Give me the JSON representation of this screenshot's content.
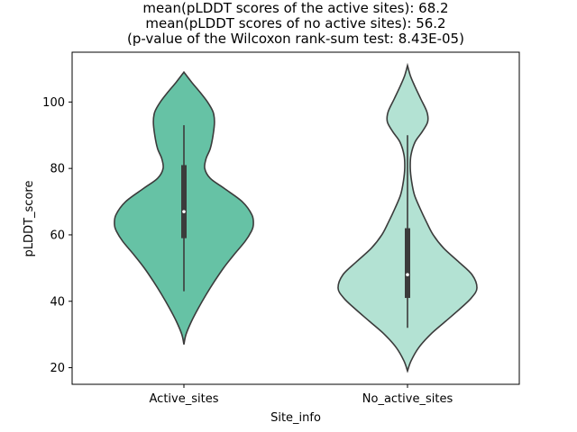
{
  "chart_data": {
    "type": "violin",
    "title_lines": [
      "mean(pLDDT scores of the active sites): 68.2",
      "mean(pLDDT scores of no active sites): 56.2",
      "(p-value of the Wilcoxon rank-sum test: 8.43E-05)"
    ],
    "xlabel": "Site_info",
    "ylabel": "pLDDT_score",
    "ylim": [
      15,
      115
    ],
    "yticks": [
      20,
      40,
      60,
      80,
      100
    ],
    "categories": [
      "Active_sites",
      "No_active_sites"
    ],
    "violins": [
      {
        "name": "Active_sites",
        "color": "#66c2a5",
        "range": [
          27,
          109
        ],
        "whisker": [
          43,
          93
        ],
        "q1": 59,
        "median": 67,
        "q3": 81,
        "density_profile": [
          [
            27,
            0.0
          ],
          [
            30,
            0.03
          ],
          [
            34,
            0.11
          ],
          [
            38,
            0.21
          ],
          [
            42,
            0.32
          ],
          [
            46,
            0.44
          ],
          [
            50,
            0.57
          ],
          [
            54,
            0.72
          ],
          [
            58,
            0.88
          ],
          [
            61,
            0.97
          ],
          [
            63,
            1.0
          ],
          [
            66,
            0.98
          ],
          [
            70,
            0.84
          ],
          [
            74,
            0.58
          ],
          [
            77,
            0.38
          ],
          [
            80,
            0.3
          ],
          [
            83,
            0.32
          ],
          [
            86,
            0.38
          ],
          [
            90,
            0.42
          ],
          [
            94,
            0.44
          ],
          [
            97,
            0.42
          ],
          [
            100,
            0.34
          ],
          [
            103,
            0.23
          ],
          [
            106,
            0.11
          ],
          [
            109,
            0.0
          ]
        ]
      },
      {
        "name": "No_active_sites",
        "color": "#b3e2d3",
        "range": [
          19,
          111
        ],
        "whisker": [
          32,
          90
        ],
        "q1": 41,
        "median": 48,
        "q3": 62,
        "density_profile": [
          [
            19,
            0.0
          ],
          [
            22,
            0.05
          ],
          [
            26,
            0.16
          ],
          [
            30,
            0.33
          ],
          [
            34,
            0.55
          ],
          [
            38,
            0.77
          ],
          [
            41,
            0.92
          ],
          [
            44,
            1.0
          ],
          [
            48,
            0.93
          ],
          [
            52,
            0.73
          ],
          [
            56,
            0.52
          ],
          [
            60,
            0.37
          ],
          [
            64,
            0.27
          ],
          [
            68,
            0.18
          ],
          [
            72,
            0.1
          ],
          [
            76,
            0.06
          ],
          [
            80,
            0.04
          ],
          [
            84,
            0.05
          ],
          [
            88,
            0.11
          ],
          [
            91,
            0.21
          ],
          [
            94,
            0.29
          ],
          [
            97,
            0.28
          ],
          [
            101,
            0.19
          ],
          [
            105,
            0.1
          ],
          [
            108,
            0.04
          ],
          [
            111,
            0.0
          ]
        ]
      }
    ],
    "summary_stats": {
      "mean_active_sites": 68.2,
      "mean_no_active_sites": 56.2,
      "wilcoxon_p_value": "8.43E-05"
    }
  }
}
